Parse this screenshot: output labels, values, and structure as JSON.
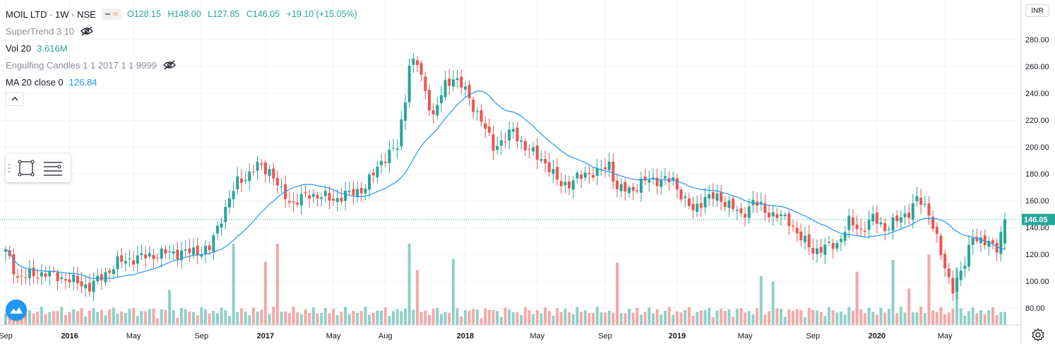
{
  "header": {
    "symbol": "MOIL LTD · 1W · NSE",
    "ohlc": {
      "open": "O128.15",
      "high": "H148.00",
      "low": "L127.85",
      "close": "C146.05",
      "change": "+19.10 (+15.05%)"
    }
  },
  "indicators": {
    "supertrend": {
      "label": "SuperTrend 3 10",
      "icon": "eye-off-icon"
    },
    "volume": {
      "label": "Vol 20",
      "value": "3.616M"
    },
    "engulfing": {
      "label": "Engulfing Candles 1 1 2017 1 1 9999",
      "icon": "eye-off-icon"
    },
    "ma": {
      "label": "MA 20 close 0",
      "value": "126.84"
    }
  },
  "currency": "INR",
  "toolbar": {
    "tools": [
      "rectangle-tool-icon",
      "text-lines-tool-icon"
    ]
  },
  "colors": {
    "up": "#26a69a",
    "down": "#ef5350",
    "ma": "#2196f3",
    "up_volume": "#8fd0c8",
    "down_volume": "#f4a9a8",
    "price_line": "#26a69a"
  },
  "chart_data": {
    "type": "candlestick",
    "title": "MOIL LTD · 1W · NSE",
    "x_tick_labels": [
      "Sep",
      "2016",
      "May",
      "Sep",
      "2017",
      "May",
      "Aug",
      "2018",
      "May",
      "Sep",
      "2019",
      "May",
      "Sep",
      "2020",
      "May"
    ],
    "x_tick_weeks": [
      0,
      16,
      32,
      49,
      65,
      82,
      95,
      115,
      133,
      150,
      168,
      185,
      202,
      218,
      235
    ],
    "y_ticks": [
      80,
      100,
      120,
      140,
      160,
      180,
      200,
      220,
      240,
      260,
      280
    ],
    "ylim": [
      67.5,
      299
    ],
    "current_price": "146.05",
    "series_close_anchors_week_value": [
      [
        0,
        122
      ],
      [
        3,
        103
      ],
      [
        10,
        106
      ],
      [
        16,
        101
      ],
      [
        21,
        96
      ],
      [
        24,
        103
      ],
      [
        28,
        114
      ],
      [
        32,
        117
      ],
      [
        40,
        121
      ],
      [
        47,
        122
      ],
      [
        51,
        124
      ],
      [
        54,
        148
      ],
      [
        58,
        174
      ],
      [
        61,
        180
      ],
      [
        63,
        186
      ],
      [
        66,
        183
      ],
      [
        69,
        166
      ],
      [
        72,
        158
      ],
      [
        76,
        165
      ],
      [
        82,
        161
      ],
      [
        86,
        165
      ],
      [
        90,
        170
      ],
      [
        94,
        190
      ],
      [
        98,
        200
      ],
      [
        100,
        237
      ],
      [
        101,
        262
      ],
      [
        103,
        262
      ],
      [
        107,
        222
      ],
      [
        110,
        247
      ],
      [
        112,
        252
      ],
      [
        115,
        242
      ],
      [
        118,
        225
      ],
      [
        122,
        201
      ],
      [
        125,
        205
      ],
      [
        127,
        213
      ],
      [
        130,
        199
      ],
      [
        134,
        192
      ],
      [
        138,
        175
      ],
      [
        141,
        172
      ],
      [
        145,
        181
      ],
      [
        148,
        180
      ],
      [
        151,
        188
      ],
      [
        153,
        168
      ],
      [
        157,
        169
      ],
      [
        161,
        176
      ],
      [
        165,
        175
      ],
      [
        167,
        175
      ],
      [
        170,
        160
      ],
      [
        172,
        152
      ],
      [
        175,
        163
      ],
      [
        178,
        162
      ],
      [
        181,
        158
      ],
      [
        184,
        148
      ],
      [
        187,
        160
      ],
      [
        190,
        152
      ],
      [
        193,
        149
      ],
      [
        196,
        145
      ],
      [
        199,
        132
      ],
      [
        202,
        123
      ],
      [
        205,
        125
      ],
      [
        208,
        128
      ],
      [
        211,
        144
      ],
      [
        214,
        138
      ],
      [
        217,
        147
      ],
      [
        220,
        140
      ],
      [
        223,
        145
      ],
      [
        226,
        152
      ],
      [
        228,
        161
      ],
      [
        231,
        152
      ],
      [
        233,
        132
      ],
      [
        235,
        108
      ],
      [
        237,
        96
      ],
      [
        240,
        112
      ],
      [
        242,
        135
      ],
      [
        245,
        128
      ],
      [
        248,
        126
      ],
      [
        250,
        146
      ]
    ],
    "volume_spikes_week": [
      41,
      57,
      65,
      68,
      101,
      103,
      112,
      153,
      189,
      192,
      213,
      222,
      226,
      231,
      238
    ],
    "volume_last": "3.616M",
    "ma_period": 20,
    "ma_last": "126.84"
  }
}
